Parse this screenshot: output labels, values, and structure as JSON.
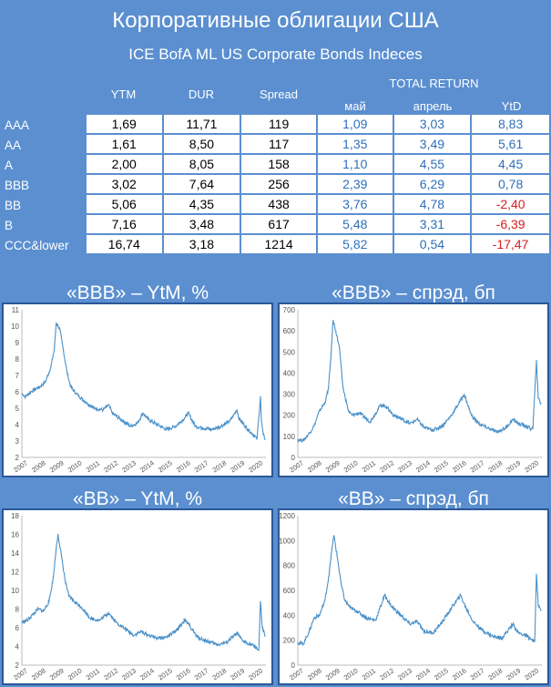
{
  "title": "Корпоративные облигации США",
  "subtitle": "ICE BofA ML US Corporate Bonds Indeces",
  "headers": {
    "ytm": "YTM",
    "dur": "DUR",
    "spread": "Spread",
    "total_return": "TOTAL RETURN",
    "may": "май",
    "april": "апрель",
    "ytd": "YtD"
  },
  "rows": [
    {
      "name": "AAA",
      "ytm": "1,69",
      "dur": "11,71",
      "spread": "119",
      "may": "1,09",
      "april": "3,03",
      "ytd": "8,83"
    },
    {
      "name": "AA",
      "ytm": "1,61",
      "dur": "8,50",
      "spread": "117",
      "may": "1,35",
      "april": "3,49",
      "ytd": "5,61"
    },
    {
      "name": "A",
      "ytm": "2,00",
      "dur": "8,05",
      "spread": "158",
      "may": "1,10",
      "april": "4,55",
      "ytd": "4,45"
    },
    {
      "name": "BBB",
      "ytm": "3,02",
      "dur": "7,64",
      "spread": "256",
      "may": "2,39",
      "april": "6,29",
      "ytd": "0,78"
    },
    {
      "name": "BB",
      "ytm": "5,06",
      "dur": "4,35",
      "spread": "438",
      "may": "3,76",
      "april": "4,78",
      "ytd": "-2,40"
    },
    {
      "name": "B",
      "ytm": "7,16",
      "dur": "3,48",
      "spread": "617",
      "may": "5,48",
      "april": "3,31",
      "ytd": "-6,39"
    },
    {
      "name": "CCC&lower",
      "ytm": "16,74",
      "dur": "3,18",
      "spread": "1214",
      "may": "5,82",
      "april": "0,54",
      "ytd": "-17,47"
    }
  ],
  "colors": {
    "background": "#5b8fd0",
    "line": "#4a90c8",
    "negative": "#d62020",
    "return_text": "#2f6fb8"
  },
  "chart_data": [
    {
      "type": "line",
      "title": "«BBB» – YtM, %",
      "x_ticks": [
        "2007",
        "2008",
        "2009",
        "2010",
        "2011",
        "2012",
        "2013",
        "2014",
        "2015",
        "2016",
        "2017",
        "2018",
        "2019",
        "2020"
      ],
      "xlim": [
        2007,
        2020.5
      ],
      "ylim": [
        2,
        11
      ],
      "y_ticks": [
        2,
        3,
        4,
        5,
        6,
        7,
        8,
        9,
        10,
        11
      ],
      "x": [
        2007,
        2007.2,
        2007.5,
        2007.8,
        2008,
        2008.3,
        2008.6,
        2008.8,
        2008.9,
        2009.0,
        2009.1,
        2009.3,
        2009.5,
        2009.7,
        2010,
        2010.5,
        2011,
        2011.5,
        2011.8,
        2012,
        2012.5,
        2013,
        2013.4,
        2013.7,
        2014,
        2014.5,
        2015,
        2015.5,
        2016,
        2016.2,
        2016.6,
        2017,
        2017.5,
        2018,
        2018.5,
        2018.9,
        2019,
        2019.5,
        2019.9,
        2020.0,
        2020.2,
        2020.25,
        2020.35,
        2020.45
      ],
      "values": [
        5.9,
        5.7,
        6.0,
        6.2,
        6.3,
        6.6,
        7.5,
        8.6,
        10.2,
        10.0,
        9.8,
        8.5,
        7.2,
        6.3,
        5.9,
        5.4,
        5.0,
        4.9,
        5.2,
        4.7,
        4.3,
        3.9,
        4.1,
        4.7,
        4.3,
        4.0,
        3.7,
        3.9,
        4.4,
        4.7,
        3.9,
        3.8,
        3.7,
        3.9,
        4.2,
        4.9,
        4.4,
        3.7,
        3.3,
        3.1,
        5.7,
        4.2,
        3.4,
        3.1
      ]
    },
    {
      "type": "line",
      "title": "«BBB» – спрэд, бп",
      "x_ticks": [
        "2007",
        "2008",
        "2009",
        "2010",
        "2011",
        "2012",
        "2013",
        "2014",
        "2015",
        "2016",
        "2017",
        "2018",
        "2019",
        "2020"
      ],
      "xlim": [
        2007,
        2020.5
      ],
      "ylim": [
        0,
        700
      ],
      "y_ticks": [
        0,
        100,
        200,
        300,
        400,
        500,
        600,
        700
      ],
      "x": [
        2007,
        2007.3,
        2007.6,
        2007.9,
        2008.2,
        2008.5,
        2008.7,
        2008.85,
        2008.95,
        2009.1,
        2009.3,
        2009.5,
        2009.8,
        2010,
        2010.4,
        2011,
        2011.6,
        2011.9,
        2012.3,
        2012.8,
        2013.2,
        2013.6,
        2014,
        2014.5,
        2015,
        2015.5,
        2016,
        2016.2,
        2016.6,
        2017,
        2017.5,
        2018,
        2018.5,
        2018.9,
        2019.2,
        2019.6,
        2019.9,
        2020.0,
        2020.2,
        2020.3,
        2020.45
      ],
      "values": [
        85,
        80,
        110,
        150,
        220,
        260,
        330,
        500,
        650,
        600,
        520,
        330,
        220,
        200,
        210,
        170,
        250,
        240,
        200,
        180,
        160,
        180,
        140,
        130,
        150,
        200,
        270,
        300,
        200,
        160,
        140,
        120,
        140,
        180,
        160,
        150,
        135,
        140,
        460,
        280,
        256
      ]
    },
    {
      "type": "line",
      "title": "«BB» – YtM, %",
      "x_ticks": [
        "2007",
        "2008",
        "2009",
        "2010",
        "2011",
        "2012",
        "2013",
        "2014",
        "2015",
        "2016",
        "2017",
        "2018",
        "2019",
        "2020"
      ],
      "xlim": [
        2007,
        2020.5
      ],
      "ylim": [
        2,
        18
      ],
      "y_ticks": [
        2,
        4,
        6,
        8,
        10,
        12,
        14,
        16,
        18
      ],
      "x": [
        2007,
        2007.3,
        2007.6,
        2007.9,
        2008.2,
        2008.5,
        2008.75,
        2008.9,
        2009.0,
        2009.2,
        2009.4,
        2009.6,
        2009.9,
        2010.3,
        2010.8,
        2011.3,
        2011.8,
        2012.2,
        2012.7,
        2013.2,
        2013.6,
        2014,
        2014.5,
        2015,
        2015.5,
        2016.0,
        2016.3,
        2016.7,
        2017.2,
        2017.8,
        2018.3,
        2018.9,
        2019.2,
        2019.7,
        2019.95,
        2020.1,
        2020.2,
        2020.3,
        2020.45
      ],
      "values": [
        6.6,
        6.8,
        7.4,
        8.0,
        7.8,
        8.8,
        11.5,
        14.5,
        16.0,
        13.5,
        11.0,
        9.4,
        8.8,
        8.2,
        7.0,
        6.8,
        7.6,
        6.6,
        5.9,
        5.2,
        5.6,
        5.2,
        4.9,
        5.0,
        5.6,
        6.8,
        6.2,
        5.0,
        4.6,
        4.2,
        4.4,
        5.4,
        4.6,
        4.2,
        3.9,
        3.6,
        8.8,
        6.0,
        5.1
      ]
    },
    {
      "type": "line",
      "title": "«BB» – спрэд, бп",
      "x_ticks": [
        "2007",
        "2008",
        "2009",
        "2010",
        "2011",
        "2012",
        "2013",
        "2014",
        "2015",
        "2016",
        "2017",
        "2018",
        "2019",
        "2020"
      ],
      "xlim": [
        2007,
        2020.5
      ],
      "ylim": [
        0,
        1200
      ],
      "y_ticks": [
        0,
        200,
        400,
        600,
        800,
        1000,
        1200
      ],
      "x": [
        2007,
        2007.3,
        2007.6,
        2007.9,
        2008.2,
        2008.5,
        2008.75,
        2008.9,
        2009.0,
        2009.2,
        2009.4,
        2009.6,
        2009.9,
        2010.3,
        2010.8,
        2011.3,
        2011.8,
        2012.2,
        2012.7,
        2013.2,
        2013.6,
        2014,
        2014.5,
        2015,
        2015.5,
        2016.0,
        2016.3,
        2016.7,
        2017.2,
        2017.8,
        2018.3,
        2018.9,
        2019.2,
        2019.7,
        2019.95,
        2020.1,
        2020.2,
        2020.3,
        2020.45
      ],
      "values": [
        180,
        170,
        260,
        380,
        400,
        520,
        750,
        950,
        1040,
        850,
        650,
        520,
        460,
        430,
        380,
        360,
        560,
        470,
        400,
        330,
        350,
        270,
        260,
        350,
        460,
        560,
        460,
        350,
        280,
        230,
        220,
        330,
        260,
        230,
        200,
        190,
        730,
        480,
        438
      ]
    }
  ]
}
